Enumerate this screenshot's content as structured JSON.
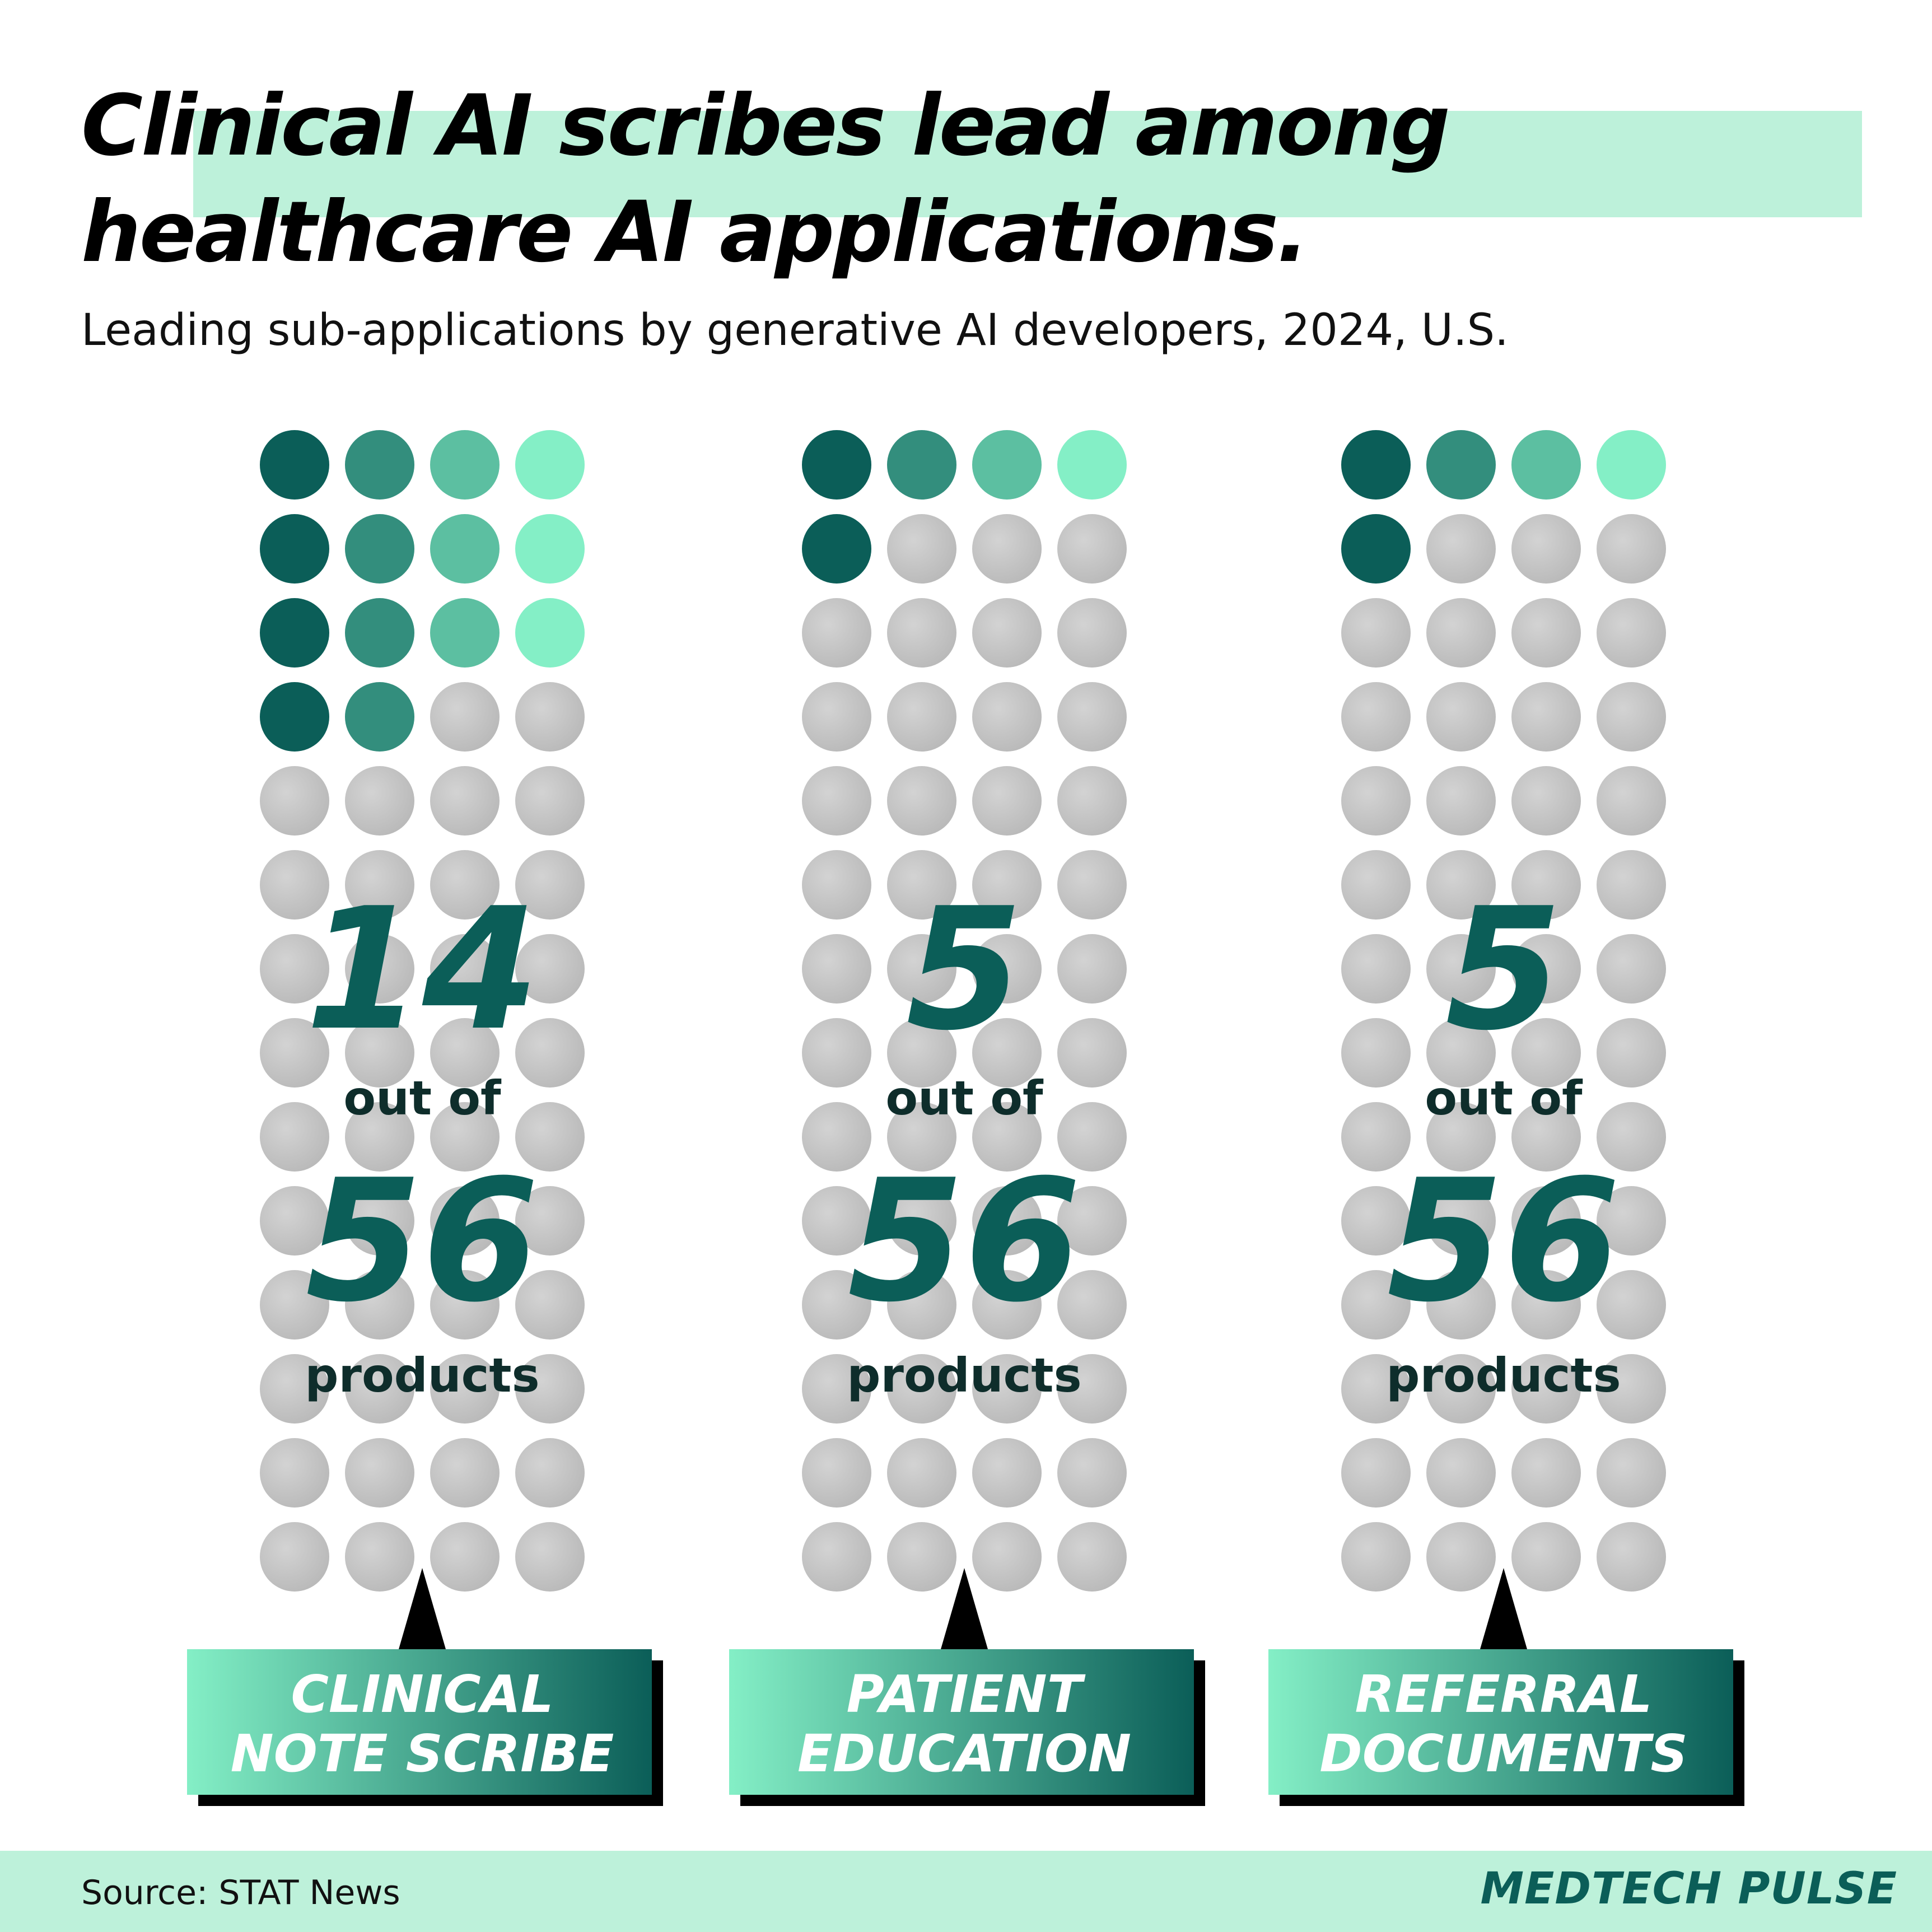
{
  "header": {
    "title_line1": "Clinical AI scribes lead among",
    "title_line2": "healthcare AI applications.",
    "subtitle": "Leading sub-applications by generative AI developers, 2024, U.S."
  },
  "footer": {
    "source": "Source: STAT News",
    "brand": "MEDTECH PULSE"
  },
  "colors": {
    "dark_teal": "#0b5e58",
    "light_mint": "#84efc6",
    "highlight": "#bdf1da",
    "inactive_dot": "#c8c8c8"
  },
  "chart_data": {
    "type": "waffle",
    "total": 56,
    "grid_columns": 4,
    "grid_rows": 14,
    "out_of_text": "out of",
    "products_text": "products",
    "series": [
      {
        "name": "CLINICAL NOTE SCRIBE",
        "label_lines": [
          "CLINICAL",
          "NOTE SCRIBE"
        ],
        "value": 14,
        "value_text": "14",
        "total_text": "56"
      },
      {
        "name": "PATIENT EDUCATION",
        "label_lines": [
          "PATIENT",
          "EDUCATION"
        ],
        "value": 5,
        "value_text": "5",
        "total_text": "56"
      },
      {
        "name": "REFERRAL DOCUMENTS",
        "label_lines": [
          "REFERRAL",
          "DOCUMENTS"
        ],
        "value": 5,
        "value_text": "5",
        "total_text": "56"
      }
    ]
  }
}
